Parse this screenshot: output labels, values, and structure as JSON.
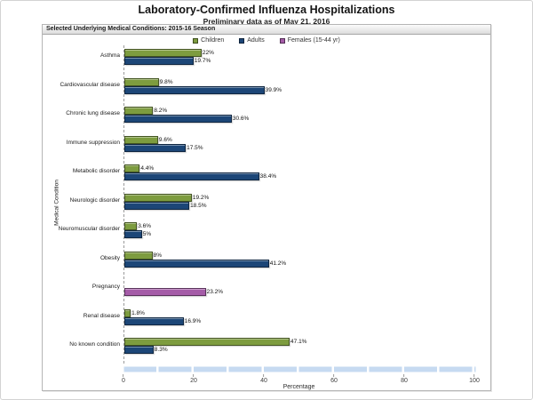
{
  "chart_data": {
    "type": "bar",
    "orientation": "horizontal",
    "title": "Laboratory-Confirmed Influenza Hospitalizations",
    "subtitle": "Preliminary data as of May 21, 2016",
    "panel_header": "Selected Underlying Medical Conditions: 2015-16 Season",
    "xlabel": "Percentage",
    "ylabel": "Medical Condition",
    "xlim": [
      0,
      100
    ],
    "xticks": [
      0,
      20,
      40,
      60,
      80,
      100
    ],
    "legend_position": "top-center",
    "grid": false,
    "colors": {
      "axis": "#9a9a9a",
      "scrollbar_track": "#c6daf1",
      "scrollbar_divider": "#ffffff"
    },
    "legend": [
      {
        "name": "Children",
        "color": "#7d9c3f"
      },
      {
        "name": "Adults",
        "color": "#1c4677"
      },
      {
        "name": "Females (15-44 yr)",
        "color": "#a55ca8"
      }
    ],
    "rows": [
      {
        "category": "Asthma",
        "bars": [
          {
            "series": "Children",
            "value": 22,
            "label": "22%"
          },
          {
            "series": "Adults",
            "value": 19.7,
            "label": "19.7%"
          }
        ]
      },
      {
        "category": "Cardiovascular disease",
        "bars": [
          {
            "series": "Children",
            "value": 9.8,
            "label": "9.8%"
          },
          {
            "series": "Adults",
            "value": 39.9,
            "label": "39.9%"
          }
        ]
      },
      {
        "category": "Chronic lung disease",
        "bars": [
          {
            "series": "Children",
            "value": 8.2,
            "label": "8.2%"
          },
          {
            "series": "Adults",
            "value": 30.6,
            "label": "30.6%"
          }
        ]
      },
      {
        "category": "Immune suppression",
        "bars": [
          {
            "series": "Children",
            "value": 9.6,
            "label": "9.6%"
          },
          {
            "series": "Adults",
            "value": 17.5,
            "label": "17.5%"
          }
        ]
      },
      {
        "category": "Metabolic disorder",
        "bars": [
          {
            "series": "Children",
            "value": 4.4,
            "label": "4.4%"
          },
          {
            "series": "Adults",
            "value": 38.4,
            "label": "38.4%"
          }
        ]
      },
      {
        "category": "Neurologic disorder",
        "bars": [
          {
            "series": "Children",
            "value": 19.2,
            "label": "19.2%"
          },
          {
            "series": "Adults",
            "value": 18.5,
            "label": "18.5%"
          }
        ]
      },
      {
        "category": "Neuromuscular disorder",
        "bars": [
          {
            "series": "Children",
            "value": 3.6,
            "label": "3.6%"
          },
          {
            "series": "Adults",
            "value": 5,
            "label": "5%"
          }
        ]
      },
      {
        "category": "Obesity",
        "bars": [
          {
            "series": "Children",
            "value": 8,
            "label": "8%"
          },
          {
            "series": "Adults",
            "value": 41.2,
            "label": "41.2%"
          }
        ]
      },
      {
        "category": "Pregnancy",
        "bars": [
          null,
          {
            "series": "Females (15-44 yr)",
            "value": 23.2,
            "label": "23.2%"
          }
        ]
      },
      {
        "category": "Renal disease",
        "bars": [
          {
            "series": "Children",
            "value": 1.8,
            "label": "1.8%"
          },
          {
            "series": "Adults",
            "value": 16.9,
            "label": "16.9%"
          }
        ]
      },
      {
        "category": "No known condition",
        "bars": [
          {
            "series": "Children",
            "value": 47.1,
            "label": "47.1%"
          },
          {
            "series": "Adults",
            "value": 8.3,
            "label": "8.3%"
          }
        ]
      }
    ]
  }
}
